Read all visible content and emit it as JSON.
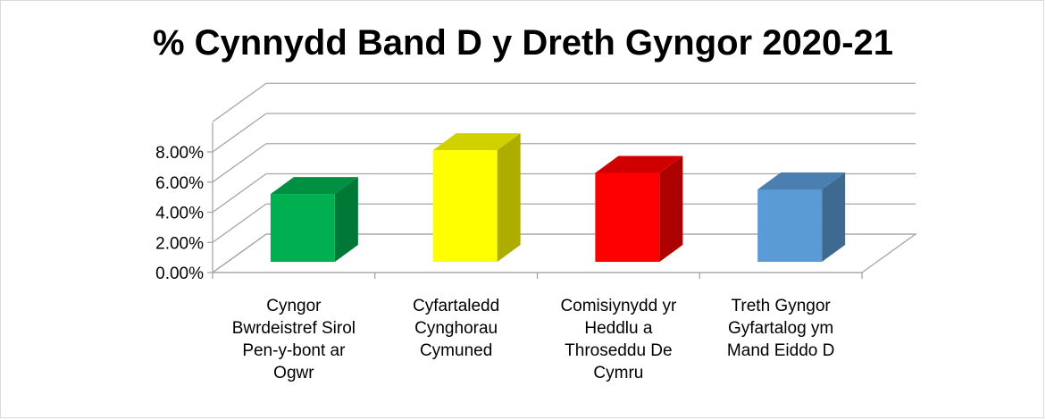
{
  "chart_data": {
    "type": "bar",
    "title": "% Cynnydd Band D y Dreth Gyngor 2020-21",
    "categories": [
      [
        "Cyngor",
        "Bwrdeistref Sirol",
        "Pen-y-bont ar",
        "Ogwr"
      ],
      [
        "Cyfartaledd",
        "Cynghorau",
        "Cymuned"
      ],
      [
        "Comisiynydd yr",
        "Heddlu a",
        "Throseddu De",
        "Cymru"
      ],
      [
        "Treth Gyngor",
        "Gyfartalog ym",
        "Mand Eiddo D"
      ]
    ],
    "values": [
      4.5,
      7.4,
      5.9,
      4.8
    ],
    "colors": [
      "#00b050",
      "#ffff00",
      "#ff0000",
      "#5b9bd5"
    ],
    "y_ticks": [
      "0.00%",
      "2.00%",
      "4.00%",
      "6.00%",
      "8.00%"
    ],
    "ylim": [
      0,
      8
    ],
    "grid": true,
    "legend": "none"
  }
}
